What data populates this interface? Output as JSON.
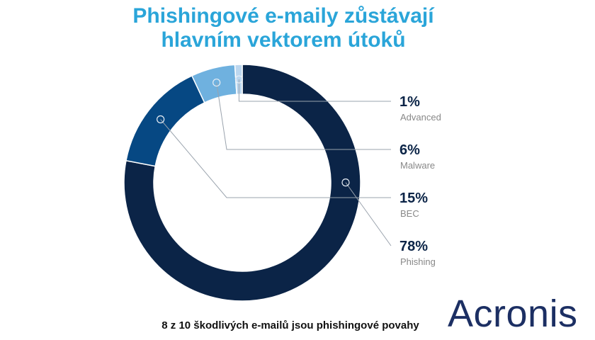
{
  "title_lines": [
    "Phishingové e-maily zůstávají",
    "hlavním vektorem útoků"
  ],
  "caption": "8 z 10 škodlivých e-mailů jsou phishingové povahy",
  "logo_text": "Acronis",
  "chart_data": {
    "type": "pie",
    "variant": "donut",
    "legend_placement": "right",
    "slices": [
      {
        "name": "Phishing",
        "value": 78,
        "label": "78%",
        "color": "#0b2447"
      },
      {
        "name": "BEC",
        "value": 15,
        "label": "15%",
        "color": "#064883"
      },
      {
        "name": "Malware",
        "value": 6,
        "label": "6%",
        "color": "#6fb1df"
      },
      {
        "name": "Advanced",
        "value": 1,
        "label": "1%",
        "color": "#bcd7ef"
      }
    ]
  }
}
